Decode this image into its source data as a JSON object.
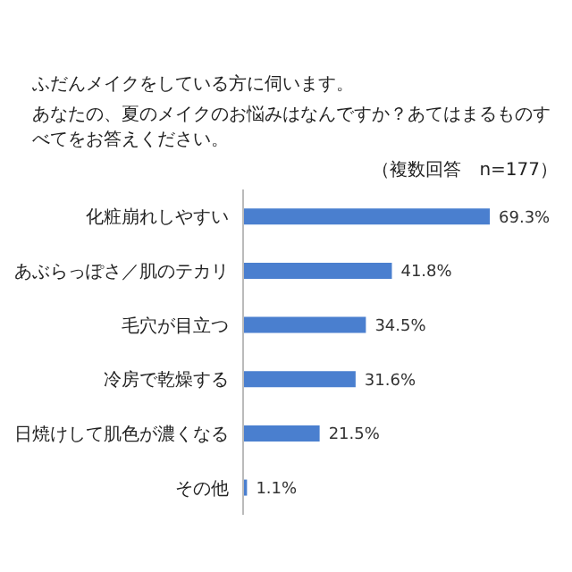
{
  "chart_data": {
    "type": "bar",
    "orientation": "horizontal",
    "title": "ふだんメイクをしている方に伺います。",
    "subtitle": "あなたの、夏のメイクのお悩みはなんですか？あてはまるものすべてをお答えください。",
    "annotations": [
      "（複数回答　n=177）"
    ],
    "categories": [
      "化粧崩れしやすい",
      "あぶらっぽさ／肌のテカリ",
      "毛穴が目立つ",
      "冷房で乾燥する",
      "日焼けして肌色が濃くなる",
      "その他"
    ],
    "values": [
      69.3,
      41.8,
      34.5,
      31.6,
      21.5,
      1.1
    ],
    "value_labels": [
      "69.3%",
      "41.8%",
      "34.5%",
      "31.6%",
      "21.5%",
      "1.1%"
    ],
    "color": "#4a7fcf",
    "grid": false,
    "legend": false
  }
}
